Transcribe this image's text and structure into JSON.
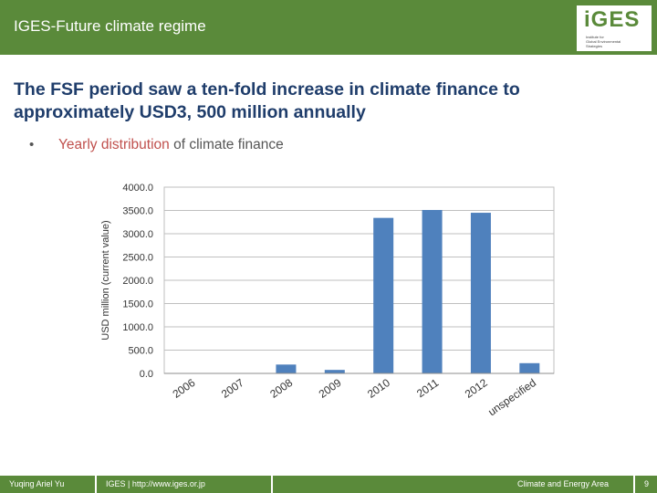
{
  "header": {
    "title": "IGES-Future climate regime",
    "logo_text": "iGES",
    "logo_sub": [
      "Institute for",
      "Global Environmental",
      "Strategies"
    ]
  },
  "slide": {
    "title": "The FSF period saw a ten-fold increase in climate finance to approximately USD3, 500 million annually",
    "bullet_marker": "•",
    "bullet_highlight": "Yearly distribution",
    "bullet_rest": " of climate finance"
  },
  "chart_data": {
    "type": "bar",
    "categories": [
      "2006",
      "2007",
      "2008",
      "2009",
      "2010",
      "2011",
      "2012",
      "unspecified"
    ],
    "values": [
      0,
      0,
      190,
      75,
      3340,
      3510,
      3450,
      220
    ],
    "title": "",
    "xlabel": "",
    "ylabel": "USD million (current value)",
    "ylim": [
      0,
      4000
    ],
    "yticks": [
      "0.0",
      "500.0",
      "1000.0",
      "1500.0",
      "2000.0",
      "2500.0",
      "3000.0",
      "3500.0",
      "4000.0"
    ],
    "grid": true,
    "bar_color": "#4f81bd"
  },
  "footer": {
    "author": "Yuqing Ariel Yu",
    "org": "IGES | http://www.iges.or.jp",
    "area": "Climate and Energy Area",
    "page": "9"
  }
}
